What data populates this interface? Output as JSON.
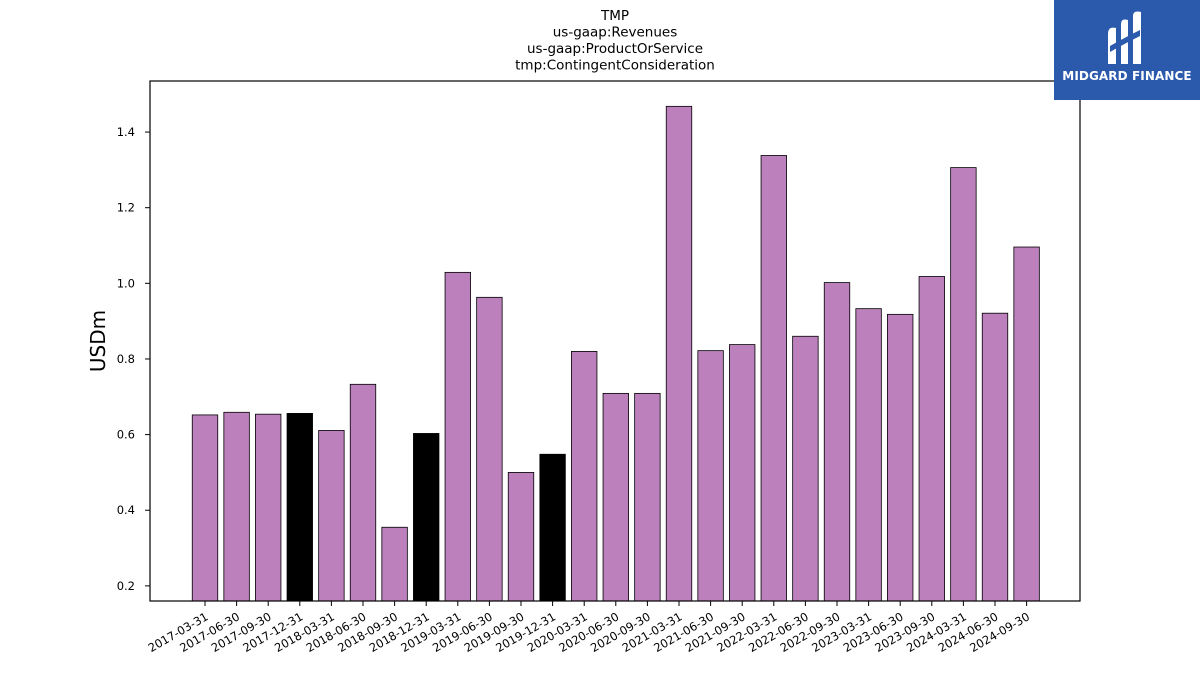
{
  "chart_data": {
    "type": "bar",
    "title_lines": [
      "TMP",
      "us-gaap:Revenues",
      "us-gaap:ProductOrService",
      "tmp:ContingentConsideration"
    ],
    "xlabel": "",
    "ylabel": "USDm",
    "ylim": [
      0.16,
      1.535
    ],
    "yticks": [
      0.2,
      0.4,
      0.6,
      0.8,
      1.0,
      1.2,
      1.4
    ],
    "ytick_labels": [
      "0.2",
      "0.4",
      "0.6",
      "0.8",
      "1.0",
      "1.2",
      "1.4"
    ],
    "categories": [
      "2017-03-31",
      "2017-06-30",
      "2017-09-30",
      "2017-12-31",
      "2018-03-31",
      "2018-06-30",
      "2018-09-30",
      "2018-12-31",
      "2019-03-31",
      "2019-06-30",
      "2019-09-30",
      "2019-12-31",
      "2020-03-31",
      "2020-06-30",
      "2020-09-30",
      "2021-03-31",
      "2021-06-30",
      "2021-09-30",
      "2022-03-31",
      "2022-06-30",
      "2022-09-30",
      "2023-03-31",
      "2023-06-30",
      "2023-09-30",
      "2024-03-31",
      "2024-06-30",
      "2024-09-30"
    ],
    "values": [
      0.652,
      0.659,
      0.654,
      0.656,
      0.611,
      0.733,
      0.355,
      0.603,
      1.029,
      0.963,
      0.5,
      0.548,
      0.82,
      0.709,
      0.709,
      1.468,
      0.822,
      0.838,
      1.338,
      0.86,
      1.002,
      0.933,
      0.918,
      1.018,
      1.306,
      0.921,
      1.096
    ],
    "highlighted": [
      false,
      false,
      false,
      true,
      false,
      false,
      false,
      true,
      false,
      false,
      false,
      true,
      false,
      false,
      false,
      false,
      false,
      false,
      false,
      false,
      false,
      false,
      false,
      false,
      false,
      false,
      false
    ],
    "colors": {
      "bar": "#bc80bd",
      "highlight": "#000000",
      "edge": "#000000"
    },
    "grid": false,
    "legend": "none"
  },
  "logo": {
    "text": "MIDGARD FINANCE",
    "background": "#2b5aad"
  }
}
